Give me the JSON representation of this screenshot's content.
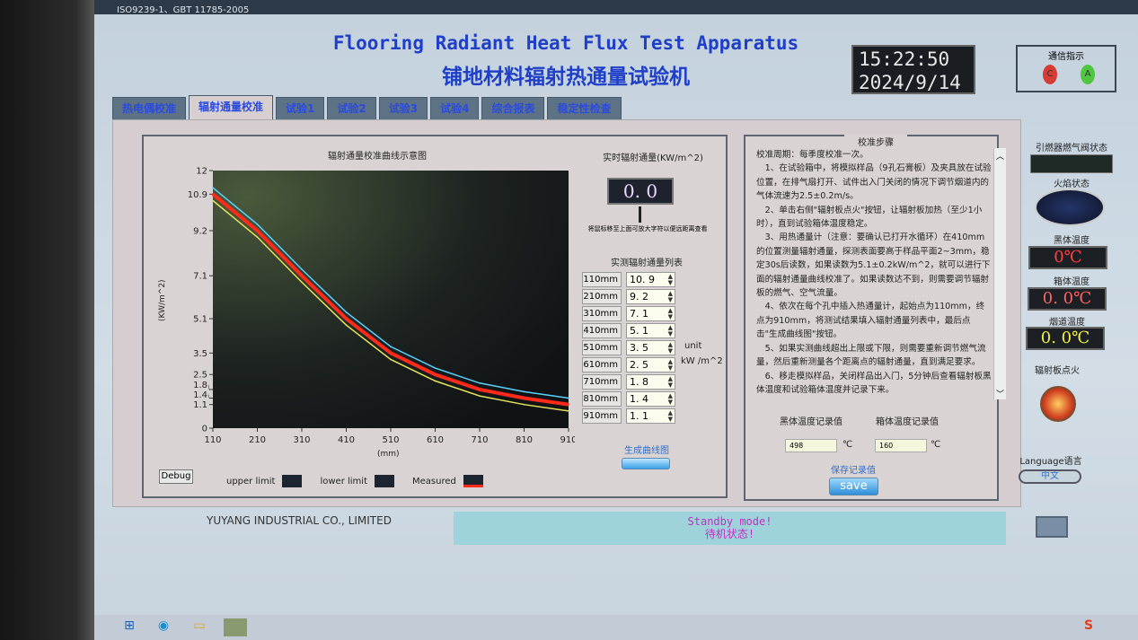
{
  "window": {
    "top_text": "ISO9239-1、GBT 11785-2005"
  },
  "header": {
    "title_en": "Flooring Radiant Heat Flux Test Apparatus",
    "title_cn": "铺地材料辐射热通量试验机",
    "time": "15:22:50",
    "date": "2024/9/14"
  },
  "comm": {
    "label": "通信指示",
    "led_c": "C",
    "led_a": "A",
    "led_c_color": "#d63b34",
    "led_a_color": "#4fc63f"
  },
  "tabs": [
    {
      "label": "热电偶校准"
    },
    {
      "label": "辐射通量校准",
      "active": true
    },
    {
      "label": "试验1"
    },
    {
      "label": "试验2"
    },
    {
      "label": "试验3"
    },
    {
      "label": "试验4"
    },
    {
      "label": "综合报表"
    },
    {
      "label": "稳定性检查"
    }
  ],
  "chart_panel": {
    "debug_label": "Debug",
    "legend": [
      {
        "name": "upper limit"
      },
      {
        "name": "lower limit"
      },
      {
        "name": "Measured",
        "color": "#ff2a1a"
      }
    ]
  },
  "chart_data": {
    "type": "line",
    "title": "辐射通量校准曲线示意图",
    "xlabel": "(mm)",
    "ylabel": "(KW/m^2)",
    "x": [
      110,
      210,
      310,
      410,
      510,
      610,
      710,
      810,
      910
    ],
    "xticks": [
      110,
      210,
      310,
      410,
      510,
      610,
      710,
      810,
      910
    ],
    "yticks": [
      0,
      1.1,
      1.4,
      1.8,
      2.5,
      3.5,
      5.1,
      7.1,
      9.2,
      10.9,
      12
    ],
    "xlim": [
      110,
      910
    ],
    "ylim": [
      0,
      12
    ],
    "series": [
      {
        "name": "upper limit",
        "color": "#5ad0ff",
        "values": [
          11.2,
          9.5,
          7.4,
          5.4,
          3.8,
          2.8,
          2.1,
          1.7,
          1.4
        ]
      },
      {
        "name": "Measured",
        "color": "#ff2a1a",
        "values": [
          10.9,
          9.2,
          7.1,
          5.1,
          3.5,
          2.5,
          1.8,
          1.4,
          1.1
        ]
      },
      {
        "name": "lower limit",
        "color": "#e6e35a",
        "values": [
          10.6,
          8.9,
          6.8,
          4.8,
          3.2,
          2.2,
          1.5,
          1.1,
          0.8
        ]
      }
    ]
  },
  "realtime": {
    "title": "实时辐射通量(KW/m^2)",
    "value": "0. 0",
    "hint": "将鼠标移至上面可放大字符以便远距离查看"
  },
  "flux_table": {
    "title": "实测辐射通量列表",
    "unit_a": "unit",
    "unit_b": "kW /m^2",
    "rows": [
      {
        "pos": "110mm",
        "val": "10. 9"
      },
      {
        "pos": "210mm",
        "val": "9. 2"
      },
      {
        "pos": "310mm",
        "val": "7. 1"
      },
      {
        "pos": "410mm",
        "val": "5. 1"
      },
      {
        "pos": "510mm",
        "val": "3. 5"
      },
      {
        "pos": "610mm",
        "val": "2. 5"
      },
      {
        "pos": "710mm",
        "val": "1. 8"
      },
      {
        "pos": "810mm",
        "val": "1. 4"
      },
      {
        "pos": "910mm",
        "val": "1. 1"
      }
    ],
    "generate_label": "生成曲线图"
  },
  "steps": {
    "title": "校准步骤",
    "text": "校准周期：每季度校准一次。\n　1、在试验箱中，将模拟样品（9孔石膏板）及夹具放在试验位置，在排气扇打开、试件出入门关闭的情况下调节烟道内的气体流速为2.5±0.2m/s。\n　2、单击右侧\"辐射板点火\"按钮，让辐射板加热（至少1小时），直到试验箱体温度稳定。\n　3、用热通量计（注意：要确认已打开水循环）在410mm的位置测量辐射通量，探测表面要高于样品平面2~3mm，稳定30s后读数，如果读数为5.1±0.2kW/m^2，就可以进行下面的辐射通量曲线校准了。如果读数达不到，则需要调节辐射板的燃气、空气流量。\n　4、依次在每个孔中插入热通量计，起始点为110mm，终点为910mm，将测试结果填入辐射通量列表中，最后点击\"生成曲线图\"按钮。\n　5、如果实测曲线超出上限或下限，则需要重新调节燃气流量，然后重新测量各个距离点的辐射通量，直到满足要求。\n　6、移走模拟样品，关闭样品出入门，5分钟后查看辐射板黑体温度和试验箱体温度并记录下来。",
    "bb_label": "黑体温度记录值",
    "box_label": "箱体温度记录值",
    "bb_value": "498",
    "box_value": "160",
    "unit": "℃",
    "save_caption": "保存记录值",
    "save_label": "save"
  },
  "right": {
    "valve_label": "引燃器燃气阀状态",
    "flame_label": "火焰状态",
    "bb_label": "黑体温度",
    "bb_value": "0℃",
    "box_label": "箱体温度",
    "box_value": "0. 0℃",
    "flue_label": "烟道温度",
    "flue_value": "0. 0℃",
    "ignite_label": "辐射板点火",
    "lang_label": "Language语言",
    "lang_button": "中文"
  },
  "footer": {
    "company": "YUYANG INDUSTRIAL CO., LIMITED",
    "status_en": "Standby mode!",
    "status_cn": "待机状态!"
  }
}
